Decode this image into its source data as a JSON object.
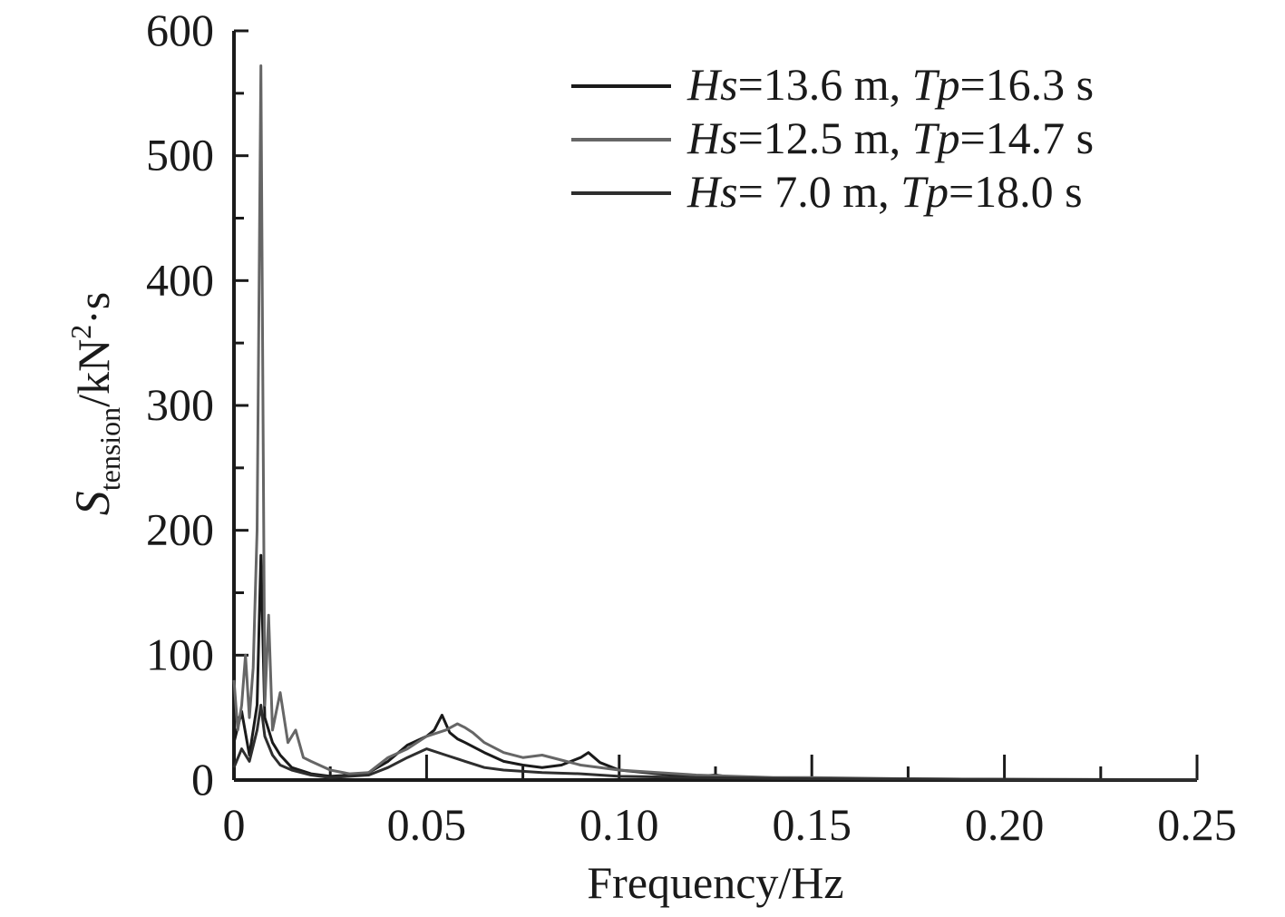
{
  "chart_data": {
    "type": "line",
    "xlabel": "Frequency/Hz",
    "ylabel": {
      "symbol": "S",
      "subscript": "tension",
      "unit_prefix": "/kN",
      "superscript": "2",
      "unit_suffix": "·s"
    },
    "xlim": [
      0,
      0.25
    ],
    "ylim": [
      0,
      600
    ],
    "x_ticks": [
      0,
      0.05,
      0.1,
      0.15,
      0.2,
      0.25
    ],
    "x_tick_labels": [
      "0",
      "0.05",
      "0.10",
      "0.15",
      "0.20",
      "0.25"
    ],
    "y_ticks": [
      0,
      100,
      200,
      300,
      400,
      500,
      600
    ],
    "y_tick_labels": [
      "0",
      "100",
      "200",
      "300",
      "400",
      "500",
      "600"
    ],
    "grid": false,
    "legend_position": "top-right",
    "series": [
      {
        "legend": {
          "a": "Hs",
          "b": "=13.6 m, ",
          "c": "Tp",
          "d": "=16.3 s"
        },
        "color": "#1a1a1a",
        "x": [
          0,
          0.002,
          0.004,
          0.006,
          0.007,
          0.008,
          0.01,
          0.012,
          0.015,
          0.02,
          0.025,
          0.03,
          0.035,
          0.04,
          0.045,
          0.05,
          0.052,
          0.054,
          0.056,
          0.058,
          0.06,
          0.065,
          0.07,
          0.075,
          0.08,
          0.085,
          0.09,
          0.092,
          0.095,
          0.1,
          0.11,
          0.12,
          0.125,
          0.13,
          0.15,
          0.175,
          0.2,
          0.25
        ],
        "y": [
          30,
          55,
          20,
          60,
          180,
          50,
          30,
          20,
          10,
          5,
          3,
          4,
          6,
          15,
          28,
          35,
          40,
          52,
          38,
          33,
          30,
          22,
          15,
          12,
          10,
          12,
          18,
          22,
          14,
          8,
          5,
          3,
          4,
          2,
          1,
          1,
          0.5,
          0.3
        ]
      },
      {
        "legend": {
          "a": "Hs",
          "b": "=12.5 m, ",
          "c": "Tp",
          "d": "=14.7 s"
        },
        "color": "#666666",
        "x": [
          0,
          0.001,
          0.002,
          0.003,
          0.004,
          0.005,
          0.006,
          0.007,
          0.008,
          0.009,
          0.01,
          0.011,
          0.012,
          0.014,
          0.016,
          0.018,
          0.02,
          0.025,
          0.03,
          0.035,
          0.04,
          0.045,
          0.05,
          0.055,
          0.058,
          0.06,
          0.062,
          0.065,
          0.07,
          0.075,
          0.08,
          0.085,
          0.09,
          0.095,
          0.1,
          0.11,
          0.12,
          0.13,
          0.14,
          0.15,
          0.175,
          0.2,
          0.25
        ],
        "y": [
          80,
          40,
          60,
          100,
          50,
          90,
          200,
          572,
          60,
          132,
          40,
          55,
          70,
          30,
          40,
          18,
          15,
          8,
          5,
          6,
          18,
          25,
          35,
          40,
          45,
          42,
          38,
          30,
          22,
          18,
          20,
          16,
          12,
          10,
          8,
          6,
          4,
          3,
          2,
          2,
          1,
          0.5,
          0.3
        ]
      },
      {
        "legend": {
          "a": "Hs",
          "b": "= 7.0 m, ",
          "c": "Tp",
          "d": "=18.0 s"
        },
        "color": "#2e2e2e",
        "x": [
          0,
          0.002,
          0.004,
          0.006,
          0.007,
          0.008,
          0.01,
          0.012,
          0.015,
          0.02,
          0.025,
          0.03,
          0.035,
          0.04,
          0.045,
          0.05,
          0.055,
          0.06,
          0.065,
          0.07,
          0.08,
          0.09,
          0.1,
          0.12,
          0.15,
          0.2,
          0.25
        ],
        "y": [
          10,
          25,
          15,
          40,
          60,
          35,
          20,
          12,
          8,
          4,
          2,
          3,
          4,
          10,
          18,
          25,
          20,
          15,
          10,
          8,
          6,
          5,
          3,
          2,
          1,
          0.5,
          0.2
        ]
      }
    ]
  }
}
